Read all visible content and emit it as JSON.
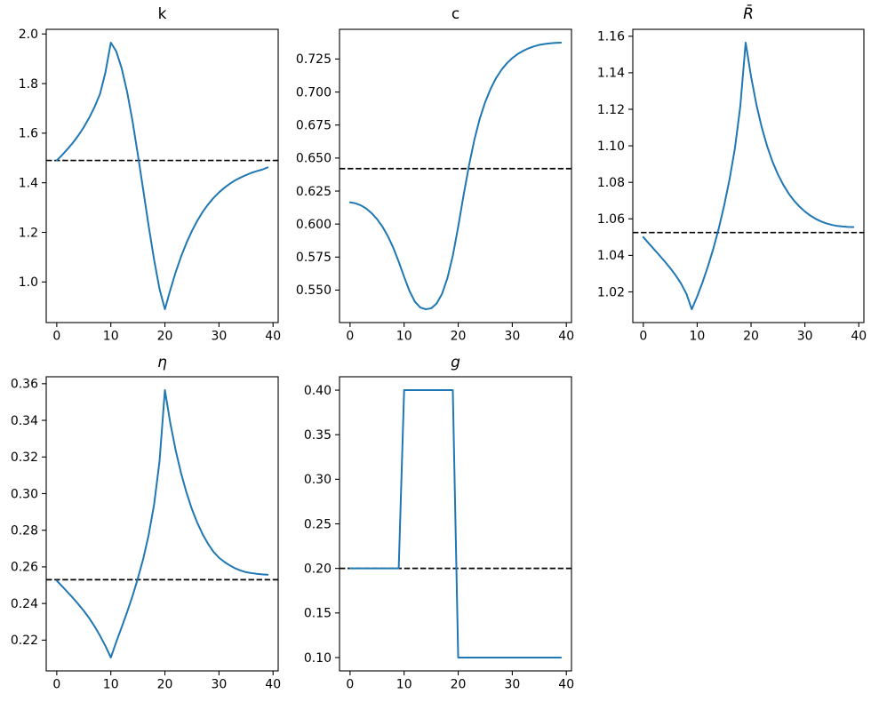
{
  "figure": {
    "background": "#ffffff",
    "empty_cell": ""
  },
  "colors": {
    "series_line": "#1f77b4",
    "steady_state_line": "#000000",
    "axis": "#000000",
    "tick_text": "#000000"
  },
  "chart_data": [
    {
      "id": "k",
      "type": "line",
      "title": "k",
      "title_italic": false,
      "xlabel": "",
      "ylabel": "",
      "grid": false,
      "legend": null,
      "x": [
        0,
        1,
        2,
        3,
        4,
        5,
        6,
        7,
        8,
        9,
        10,
        11,
        12,
        13,
        14,
        15,
        16,
        17,
        18,
        19,
        20,
        21,
        22,
        23,
        24,
        25,
        26,
        27,
        28,
        29,
        30,
        31,
        32,
        33,
        34,
        35,
        36,
        37,
        38,
        39
      ],
      "series": [
        {
          "name": "impulse-response",
          "style": "solid",
          "values": [
            1.49,
            1.512,
            1.536,
            1.562,
            1.591,
            1.624,
            1.662,
            1.706,
            1.758,
            1.845,
            1.965,
            1.93,
            1.862,
            1.768,
            1.65,
            1.513,
            1.37,
            1.225,
            1.09,
            0.972,
            0.89,
            0.968,
            1.04,
            1.103,
            1.158,
            1.206,
            1.247,
            1.283,
            1.313,
            1.339,
            1.361,
            1.38,
            1.396,
            1.41,
            1.421,
            1.431,
            1.44,
            1.447,
            1.453,
            1.462
          ]
        },
        {
          "name": "steady-state",
          "style": "dashed",
          "value": 1.49
        }
      ],
      "xlim": [
        -1.95,
        40.95
      ],
      "ylim": [
        0.83625,
        2.01875
      ],
      "xtick_values": [
        0,
        10,
        20,
        30,
        40
      ],
      "xtick_labels": [
        "0",
        "10",
        "20",
        "30",
        "40"
      ],
      "ytick_values": [
        1.0,
        1.2,
        1.4,
        1.6,
        1.8,
        2.0
      ],
      "ytick_labels": [
        "1.0",
        "1.2",
        "1.4",
        "1.6",
        "1.8",
        "2.0"
      ]
    },
    {
      "id": "c",
      "type": "line",
      "title": "c",
      "title_italic": false,
      "xlabel": "",
      "ylabel": "",
      "grid": false,
      "legend": null,
      "x": [
        0,
        1,
        2,
        3,
        4,
        5,
        6,
        7,
        8,
        9,
        10,
        11,
        12,
        13,
        14,
        15,
        16,
        17,
        18,
        19,
        20,
        21,
        22,
        23,
        24,
        25,
        26,
        27,
        28,
        29,
        30,
        31,
        32,
        33,
        34,
        35,
        36,
        37,
        38,
        39
      ],
      "series": [
        {
          "name": "impulse-response",
          "style": "solid",
          "values": [
            0.6165,
            0.6157,
            0.6142,
            0.6117,
            0.6082,
            0.6037,
            0.598,
            0.5908,
            0.582,
            0.5715,
            0.56,
            0.5492,
            0.5412,
            0.5368,
            0.5355,
            0.5362,
            0.5398,
            0.547,
            0.559,
            0.576,
            0.598,
            0.622,
            0.6445,
            0.664,
            0.68,
            0.6925,
            0.7025,
            0.7105,
            0.7168,
            0.7218,
            0.7257,
            0.7288,
            0.7312,
            0.7331,
            0.7346,
            0.7357,
            0.7364,
            0.7369,
            0.7372,
            0.7374
          ]
        },
        {
          "name": "steady-state",
          "style": "dashed",
          "value": 0.642
        }
      ],
      "xlim": [
        -1.95,
        40.95
      ],
      "ylim": [
        0.5254,
        0.7475
      ],
      "xtick_values": [
        0,
        10,
        20,
        30,
        40
      ],
      "xtick_labels": [
        "0",
        "10",
        "20",
        "30",
        "40"
      ],
      "ytick_values": [
        0.55,
        0.575,
        0.6,
        0.625,
        0.65,
        0.675,
        0.7,
        0.725
      ],
      "ytick_labels": [
        "0.550",
        "0.575",
        "0.600",
        "0.625",
        "0.650",
        "0.675",
        "0.700",
        "0.725"
      ]
    },
    {
      "id": "Rbar",
      "type": "line",
      "title": "R̄",
      "title_italic": true,
      "xlabel": "",
      "ylabel": "",
      "grid": false,
      "legend": null,
      "x": [
        0,
        1,
        2,
        3,
        4,
        5,
        6,
        7,
        8,
        9,
        10,
        11,
        12,
        13,
        14,
        15,
        16,
        17,
        18,
        19,
        20,
        21,
        22,
        23,
        24,
        25,
        26,
        27,
        28,
        29,
        30,
        31,
        32,
        33,
        34,
        35,
        36,
        37,
        38,
        39
      ],
      "series": [
        {
          "name": "impulse-response",
          "style": "solid",
          "values": [
            1.05,
            1.0466,
            1.0433,
            1.04,
            1.0366,
            1.033,
            1.0291,
            1.0246,
            1.019,
            1.0105,
            1.0175,
            1.0253,
            1.034,
            1.0437,
            1.0547,
            1.0672,
            1.0815,
            1.0985,
            1.1215,
            1.1565,
            1.138,
            1.1225,
            1.11,
            1.0997,
            1.0912,
            1.0843,
            1.0786,
            1.0738,
            1.0699,
            1.0667,
            1.064,
            1.0618,
            1.06,
            1.0586,
            1.0575,
            1.0567,
            1.0561,
            1.0558,
            1.0556,
            1.0555
          ]
        },
        {
          "name": "steady-state",
          "style": "dashed",
          "value": 1.0525
        }
      ],
      "xlim": [
        -1.95,
        40.95
      ],
      "ylim": [
        1.0032,
        1.1638
      ],
      "xtick_values": [
        0,
        10,
        20,
        30,
        40
      ],
      "xtick_labels": [
        "0",
        "10",
        "20",
        "30",
        "40"
      ],
      "ytick_values": [
        1.02,
        1.04,
        1.06,
        1.08,
        1.1,
        1.12,
        1.14,
        1.16
      ],
      "ytick_labels": [
        "1.02",
        "1.04",
        "1.06",
        "1.08",
        "1.10",
        "1.12",
        "1.14",
        "1.16"
      ]
    },
    {
      "id": "eta",
      "type": "line",
      "title": "η",
      "title_italic": true,
      "xlabel": "",
      "ylabel": "",
      "grid": false,
      "legend": null,
      "x": [
        0,
        1,
        2,
        3,
        4,
        5,
        6,
        7,
        8,
        9,
        10,
        11,
        12,
        13,
        14,
        15,
        16,
        17,
        18,
        19,
        20,
        21,
        22,
        23,
        24,
        25,
        26,
        27,
        28,
        29,
        30,
        31,
        32,
        33,
        34,
        35,
        36,
        37,
        38,
        39
      ],
      "series": [
        {
          "name": "impulse-response",
          "style": "solid",
          "values": [
            0.2525,
            0.2494,
            0.2462,
            0.243,
            0.2396,
            0.236,
            0.232,
            0.2275,
            0.2224,
            0.2168,
            0.2105,
            0.219,
            0.227,
            0.2352,
            0.244,
            0.2537,
            0.2645,
            0.2775,
            0.294,
            0.3175,
            0.3565,
            0.3385,
            0.3235,
            0.311,
            0.3005,
            0.2915,
            0.284,
            0.2777,
            0.2725,
            0.2682,
            0.265,
            0.2627,
            0.2608,
            0.2592,
            0.258,
            0.2571,
            0.2566,
            0.2562,
            0.2559,
            0.2557
          ]
        },
        {
          "name": "steady-state",
          "style": "dashed",
          "value": 0.253
        }
      ],
      "xlim": [
        -1.95,
        40.95
      ],
      "ylim": [
        0.2032,
        0.3638
      ],
      "xtick_values": [
        0,
        10,
        20,
        30,
        40
      ],
      "xtick_labels": [
        "0",
        "10",
        "20",
        "30",
        "40"
      ],
      "ytick_values": [
        0.22,
        0.24,
        0.26,
        0.28,
        0.3,
        0.32,
        0.34,
        0.36
      ],
      "ytick_labels": [
        "0.22",
        "0.24",
        "0.26",
        "0.28",
        "0.30",
        "0.32",
        "0.34",
        "0.36"
      ]
    },
    {
      "id": "g",
      "type": "line",
      "title": "g",
      "title_italic": true,
      "xlabel": "",
      "ylabel": "",
      "grid": false,
      "legend": null,
      "x": [
        0,
        1,
        2,
        3,
        4,
        5,
        6,
        7,
        8,
        9,
        10,
        11,
        12,
        13,
        14,
        15,
        16,
        17,
        18,
        19,
        20,
        21,
        22,
        23,
        24,
        25,
        26,
        27,
        28,
        29,
        30,
        31,
        32,
        33,
        34,
        35,
        36,
        37,
        38,
        39
      ],
      "series": [
        {
          "name": "impulse-response",
          "style": "solid",
          "values": [
            0.2,
            0.2,
            0.2,
            0.2,
            0.2,
            0.2,
            0.2,
            0.2,
            0.2,
            0.2,
            0.4,
            0.4,
            0.4,
            0.4,
            0.4,
            0.4,
            0.4,
            0.4,
            0.4,
            0.4,
            0.1,
            0.1,
            0.1,
            0.1,
            0.1,
            0.1,
            0.1,
            0.1,
            0.1,
            0.1,
            0.1,
            0.1,
            0.1,
            0.1,
            0.1,
            0.1,
            0.1,
            0.1,
            0.1,
            0.1
          ]
        },
        {
          "name": "steady-state",
          "style": "dashed",
          "value": 0.2
        }
      ],
      "xlim": [
        -1.95,
        40.95
      ],
      "ylim": [
        0.085,
        0.415
      ],
      "xtick_values": [
        0,
        10,
        20,
        30,
        40
      ],
      "xtick_labels": [
        "0",
        "10",
        "20",
        "30",
        "40"
      ],
      "ytick_values": [
        0.1,
        0.15,
        0.2,
        0.25,
        0.3,
        0.35,
        0.4
      ],
      "ytick_labels": [
        "0.10",
        "0.15",
        "0.20",
        "0.25",
        "0.30",
        "0.35",
        "0.40"
      ]
    }
  ]
}
